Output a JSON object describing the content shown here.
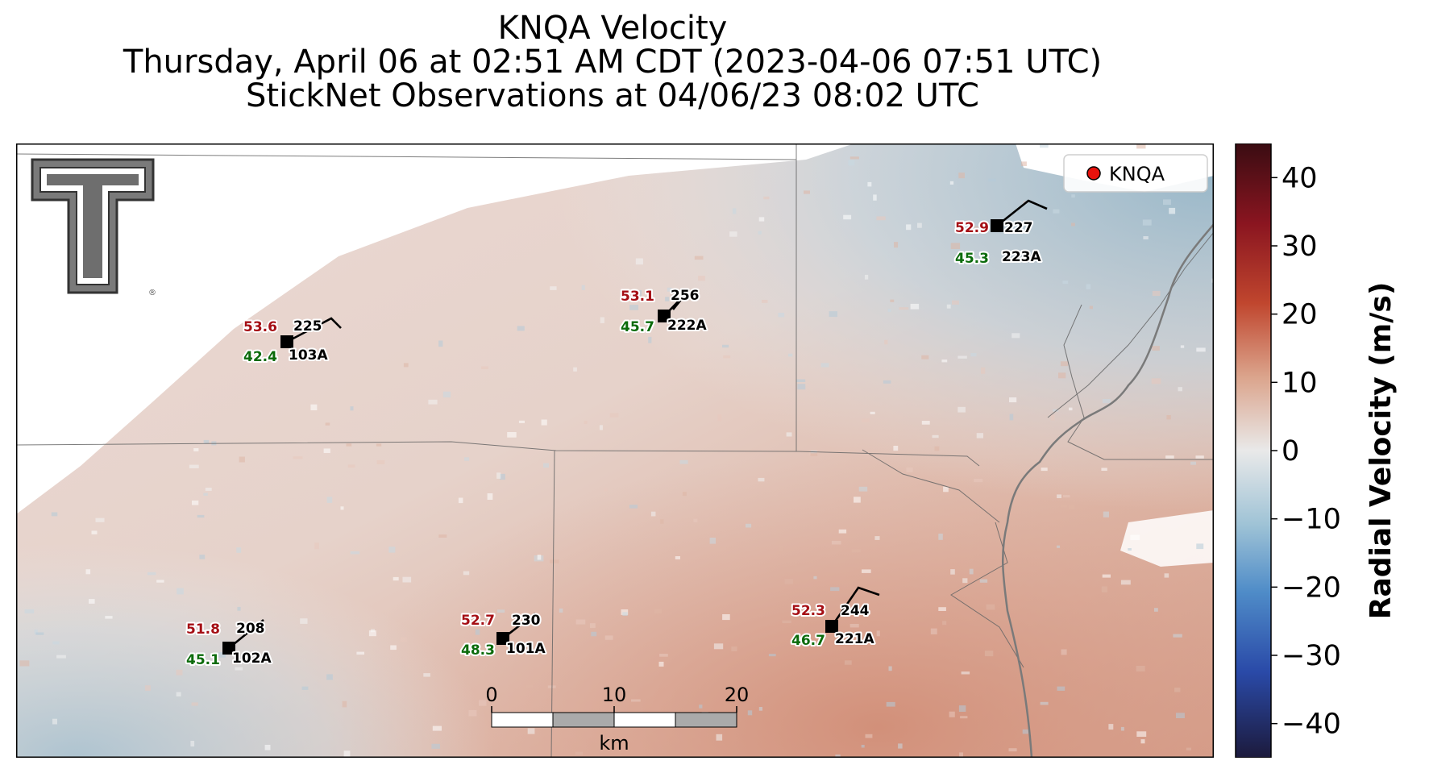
{
  "title": {
    "line1": "KNQA Velocity",
    "line2": "Thursday, April 06 at 02:51 AM CDT (2023-04-06 07:51 UTC)",
    "line3": "StickNet Observations at 04/06/23 08:02 UTC"
  },
  "legend": {
    "label": "KNQA",
    "marker_color": "#e8120c"
  },
  "colorbar": {
    "label": "Radial Velocity (m/s)",
    "range": [
      -45,
      45
    ],
    "ticks": [
      "40",
      "30",
      "20",
      "10",
      "0",
      "−10",
      "−20",
      "−30",
      "−40"
    ],
    "colors": [
      "#1c1a3c",
      "#2a4aa8",
      "#4f8cc8",
      "#9fc3d6",
      "#e9e9e9",
      "#dba48c",
      "#c0462e",
      "#8a1520",
      "#3a0c12"
    ]
  },
  "scalebar": {
    "ticks": [
      "0",
      "10",
      "20"
    ],
    "unit": "km"
  },
  "stations": [
    {
      "id": "103A",
      "temp": "53.6",
      "dew": "42.4",
      "dir": "225"
    },
    {
      "id": "222A",
      "temp": "53.1",
      "dew": "45.7",
      "dir": "256"
    },
    {
      "id": "223A",
      "temp": "52.9",
      "dew": "45.3",
      "dir": "227"
    },
    {
      "id": "102A",
      "temp": "51.8",
      "dew": "45.1",
      "dir": "208"
    },
    {
      "id": "101A",
      "temp": "52.7",
      "dew": "48.3",
      "dir": "230"
    },
    {
      "id": "221A",
      "temp": "52.3",
      "dew": "46.7",
      "dir": "244"
    }
  ],
  "colors": {
    "temp": "#a50f15",
    "dew": "#0b6b0b",
    "station_marker": "#000000"
  }
}
